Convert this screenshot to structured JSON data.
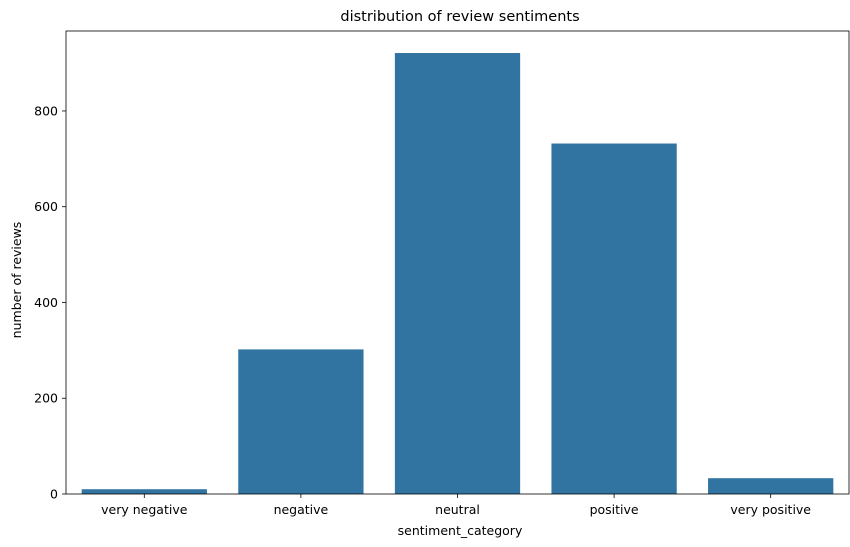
{
  "chart_data": {
    "type": "bar",
    "title": "distribution of review sentiments",
    "xlabel": "sentiment_category",
    "ylabel": "number of reviews",
    "categories": [
      "very negative",
      "negative",
      "neutral",
      "positive",
      "very positive"
    ],
    "values": [
      10,
      302,
      921,
      732,
      33
    ],
    "ylim": [
      0,
      967
    ],
    "yticks": [
      0,
      200,
      400,
      600,
      800
    ],
    "grid": false,
    "colors": {
      "bar": "#3274a1",
      "axis": "#000000",
      "background": "#ffffff"
    }
  }
}
